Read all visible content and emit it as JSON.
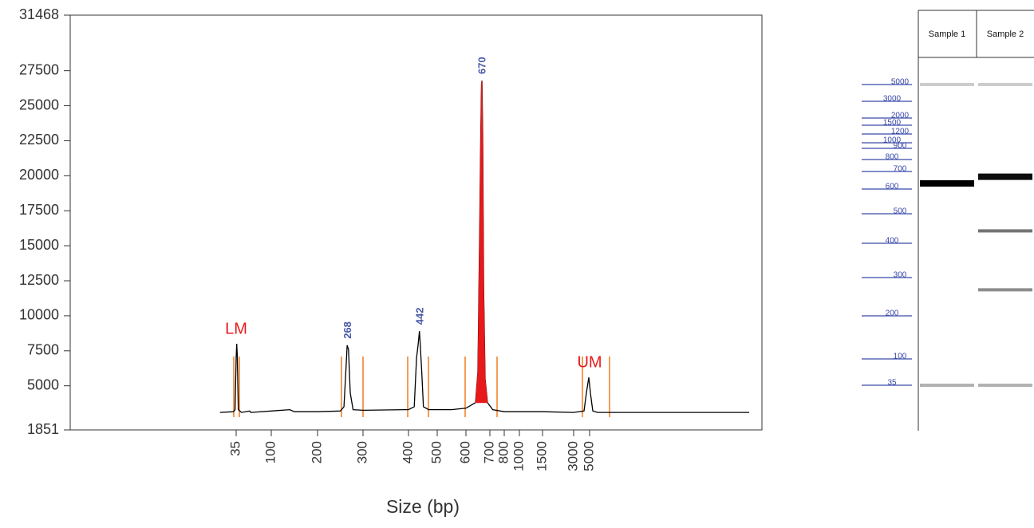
{
  "chart_data": [
    {
      "type": "line",
      "x_label": "Size (bp)",
      "ylim": [
        1851,
        31468
      ],
      "yticks": [
        1851,
        5000,
        7500,
        10000,
        12500,
        15000,
        17500,
        20000,
        22500,
        25000,
        27500,
        31468
      ],
      "xticks": [
        35,
        100,
        200,
        300,
        400,
        500,
        600,
        700,
        800,
        1000,
        1500,
        3000,
        5000
      ],
      "series": [
        {
          "color": "#000000",
          "x": [
            5,
            30,
            33,
            35,
            36,
            37,
            39,
            45,
            60,
            62,
            100,
            140,
            150,
            200,
            250,
            258,
            263,
            265,
            268,
            272,
            278,
            300,
            400,
            420,
            428,
            434,
            438,
            440,
            446,
            452,
            470,
            550,
            600,
            640,
            650,
            658,
            662,
            665,
            667,
            670,
            674,
            680,
            690,
            720,
            800,
            1500,
            3000,
            4300,
            4600,
            4900,
            5100,
            5400,
            6000,
            25000
          ],
          "values": [
            3100,
            3150,
            3300,
            7000,
            8000,
            7200,
            3300,
            3100,
            3200,
            3100,
            3200,
            3300,
            3150,
            3150,
            3200,
            3500,
            6500,
            7900,
            7600,
            4500,
            3300,
            3250,
            3300,
            3500,
            7000,
            8000,
            8900,
            8300,
            6000,
            3500,
            3300,
            3300,
            3400,
            3800,
            6000,
            17000,
            23000,
            26500,
            26800,
            23000,
            12000,
            5500,
            3800,
            3300,
            3150,
            3150,
            3100,
            3200,
            4500,
            5600,
            4500,
            3200,
            3100,
            3100
          ]
        },
        {
          "color": "#e8191b",
          "fill": true,
          "x": [
            640,
            650,
            658,
            662,
            665,
            667,
            670,
            674,
            680,
            690
          ],
          "values": [
            3800,
            6000,
            17000,
            23000,
            26500,
            26800,
            23000,
            12000,
            5500,
            3800
          ]
        }
      ],
      "peaks": [
        {
          "label": "LM",
          "x": 35,
          "color": "#e8191b"
        },
        {
          "label": "268",
          "x": 268,
          "color": "#4a5aa8"
        },
        {
          "label": "442",
          "x": 442,
          "color": "#4a5aa8"
        },
        {
          "label": "670",
          "x": 670,
          "color": "#4a5aa8"
        },
        {
          "label": "UM",
          "x": 5000,
          "color": "#e8191b"
        }
      ]
    },
    {
      "type": "gel",
      "ladder": [
        5000,
        3000,
        2000,
        1500,
        1200,
        1000,
        900,
        800,
        700,
        600,
        500,
        400,
        300,
        200,
        100,
        35
      ],
      "ladder_color": "#3a4aa8",
      "lanes": [
        {
          "name": "Sample 1",
          "bands": [
            5000,
            632,
            35
          ],
          "intensity": [
            0.2,
            1,
            0.3
          ]
        },
        {
          "name": "Sample 2",
          "bands": [
            5000,
            670,
            442,
            268,
            35
          ],
          "intensity": [
            0.2,
            0.95,
            0.55,
            0.45,
            0.3
          ]
        }
      ]
    }
  ]
}
